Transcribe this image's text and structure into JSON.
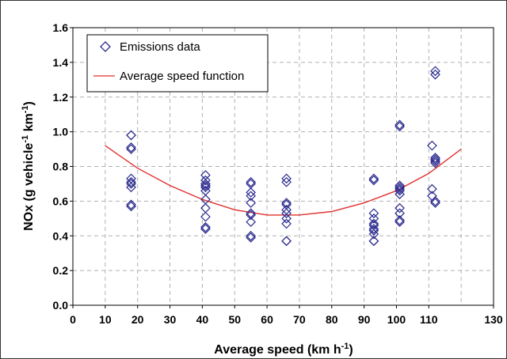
{
  "chart_data": {
    "type": "scatter",
    "xlabel": "Average speed (km h",
    "xlabel_sup": "-1",
    "xlabel_end": ")",
    "ylabel_parts": [
      "NOx (g vehicle",
      "-1",
      " km",
      "-1",
      ")"
    ],
    "xlim": [
      0,
      130
    ],
    "ylim": [
      0.0,
      1.6
    ],
    "x_ticks": [
      "0",
      "10",
      "20",
      "30",
      "40",
      "50",
      "60",
      "70",
      "80",
      "90",
      "100",
      "110",
      "130"
    ],
    "y_ticks": [
      "0.0",
      "0.2",
      "0.4",
      "0.6",
      "0.8",
      "1.0",
      "1.2",
      "1.4",
      "1.6"
    ],
    "grid": true,
    "legend_placement": "top-left",
    "series": [
      {
        "name": "Emissions data",
        "marker": "diamond",
        "color": "#2b2b8f",
        "points": [
          [
            18,
            0.98
          ],
          [
            18,
            0.98
          ],
          [
            18,
            0.91
          ],
          [
            18,
            0.9
          ],
          [
            18,
            0.73
          ],
          [
            18,
            0.71
          ],
          [
            18,
            0.7
          ],
          [
            18,
            0.68
          ],
          [
            18,
            0.58
          ],
          [
            18,
            0.57
          ],
          [
            41,
            0.75
          ],
          [
            41,
            0.72
          ],
          [
            41,
            0.7
          ],
          [
            41,
            0.69
          ],
          [
            41,
            0.68
          ],
          [
            41,
            0.66
          ],
          [
            41,
            0.61
          ],
          [
            41,
            0.56
          ],
          [
            41,
            0.51
          ],
          [
            41,
            0.45
          ],
          [
            41,
            0.44
          ],
          [
            55,
            0.71
          ],
          [
            55,
            0.7
          ],
          [
            55,
            0.65
          ],
          [
            55,
            0.63
          ],
          [
            55,
            0.59
          ],
          [
            55,
            0.53
          ],
          [
            55,
            0.52
          ],
          [
            55,
            0.48
          ],
          [
            55,
            0.4
          ],
          [
            55,
            0.39
          ],
          [
            66,
            0.73
          ],
          [
            66,
            0.71
          ],
          [
            66,
            0.59
          ],
          [
            66,
            0.58
          ],
          [
            66,
            0.55
          ],
          [
            66,
            0.53
          ],
          [
            66,
            0.5
          ],
          [
            66,
            0.47
          ],
          [
            66,
            0.37
          ],
          [
            66,
            0.37
          ],
          [
            93,
            0.73
          ],
          [
            93,
            0.72
          ],
          [
            93,
            0.53
          ],
          [
            93,
            0.5
          ],
          [
            93,
            0.47
          ],
          [
            93,
            0.46
          ],
          [
            93,
            0.44
          ],
          [
            93,
            0.43
          ],
          [
            93,
            0.41
          ],
          [
            93,
            0.37
          ],
          [
            93,
            0.37
          ],
          [
            101,
            1.04
          ],
          [
            101,
            1.03
          ],
          [
            101,
            0.69
          ],
          [
            101,
            0.68
          ],
          [
            101,
            0.67
          ],
          [
            101,
            0.66
          ],
          [
            101,
            0.64
          ],
          [
            101,
            0.56
          ],
          [
            101,
            0.53
          ],
          [
            101,
            0.49
          ],
          [
            101,
            0.48
          ],
          [
            112,
            1.35
          ],
          [
            112,
            1.33
          ],
          [
            111,
            0.92
          ],
          [
            112,
            0.85
          ],
          [
            112,
            0.84
          ],
          [
            112,
            0.83
          ],
          [
            112,
            0.82
          ],
          [
            111,
            0.67
          ],
          [
            111,
            0.63
          ],
          [
            112,
            0.6
          ],
          [
            112,
            0.59
          ]
        ]
      },
      {
        "name": "Average speed function",
        "type": "line",
        "color": "#e0302e",
        "x": [
          10,
          20,
          30,
          40,
          50,
          60,
          70,
          80,
          90,
          100,
          110,
          120
        ],
        "y": [
          0.92,
          0.79,
          0.69,
          0.61,
          0.55,
          0.52,
          0.52,
          0.54,
          0.59,
          0.66,
          0.76,
          0.9
        ]
      }
    ]
  }
}
